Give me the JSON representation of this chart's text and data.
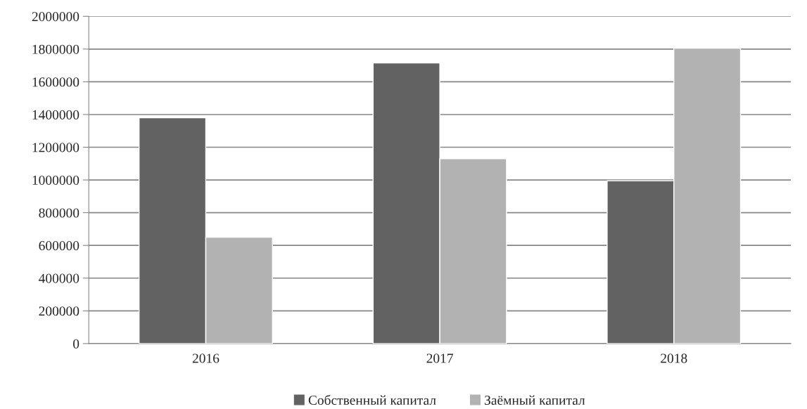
{
  "chart_data": {
    "type": "bar",
    "categories": [
      "2016",
      "2017",
      "2018"
    ],
    "series": [
      {
        "name": "Собственный капитал",
        "color": "#626262",
        "values": [
          1380000,
          1715000,
          995000
        ]
      },
      {
        "name": "Заёмный капитал",
        "color": "#b2b2b2",
        "values": [
          650000,
          1130000,
          1805000
        ]
      }
    ],
    "ylim": [
      0,
      2000000
    ],
    "yticks": [
      0,
      200000,
      400000,
      600000,
      800000,
      1000000,
      1200000,
      1400000,
      1600000,
      1800000,
      2000000
    ],
    "grid": "y",
    "legend": "bottom"
  }
}
